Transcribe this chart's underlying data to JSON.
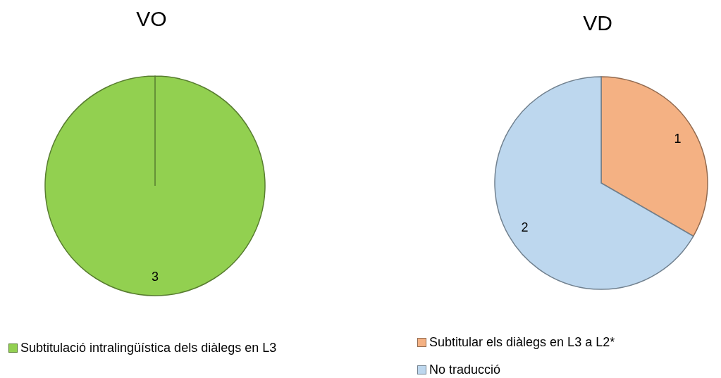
{
  "chart_data": [
    {
      "type": "pie",
      "title": "VO",
      "categories": [
        "Subtitulació intralingüística dels diàlegs en L3"
      ],
      "values": [
        3
      ],
      "colors": [
        "#92d050"
      ],
      "data_labels": true,
      "legend": "bottom"
    },
    {
      "type": "pie",
      "title": "VD",
      "categories": [
        "Subtitular els diàlegs en L3 a L2*",
        "No traducció"
      ],
      "values": [
        1,
        2
      ],
      "colors": [
        "#f4b183",
        "#bdd7ee"
      ],
      "data_labels": true,
      "legend": "bottom"
    }
  ]
}
